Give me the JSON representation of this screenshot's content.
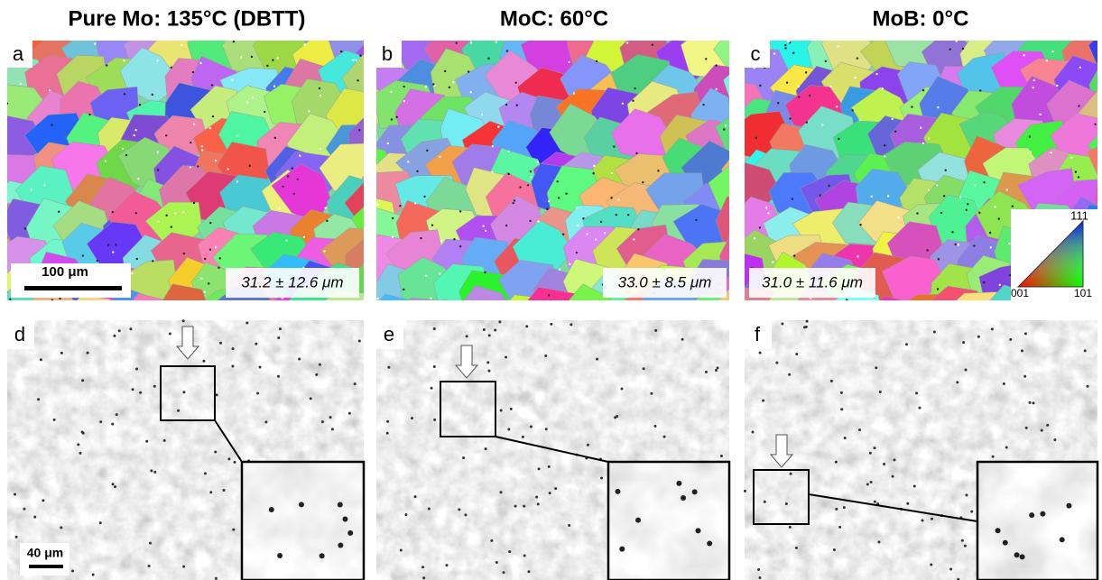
{
  "columns": [
    {
      "title": "Pure Mo: 135°C (DBTT)"
    },
    {
      "title": "MoC: 60°C"
    },
    {
      "title": "MoB: 0°C"
    }
  ],
  "panels": [
    {
      "label": "a",
      "grain_size": "31.2 ± 12.6 μm",
      "scale_bar": "100 μm"
    },
    {
      "label": "b",
      "grain_size": "33.0 ± 8.5 μm"
    },
    {
      "label": "c",
      "grain_size": "31.0 ± 11.6 μm"
    },
    {
      "label": "d",
      "scale_bar": "40 μm"
    },
    {
      "label": "e"
    },
    {
      "label": "f"
    }
  ],
  "ipf_legend": {
    "top": "111",
    "left": "001",
    "right": "101"
  }
}
